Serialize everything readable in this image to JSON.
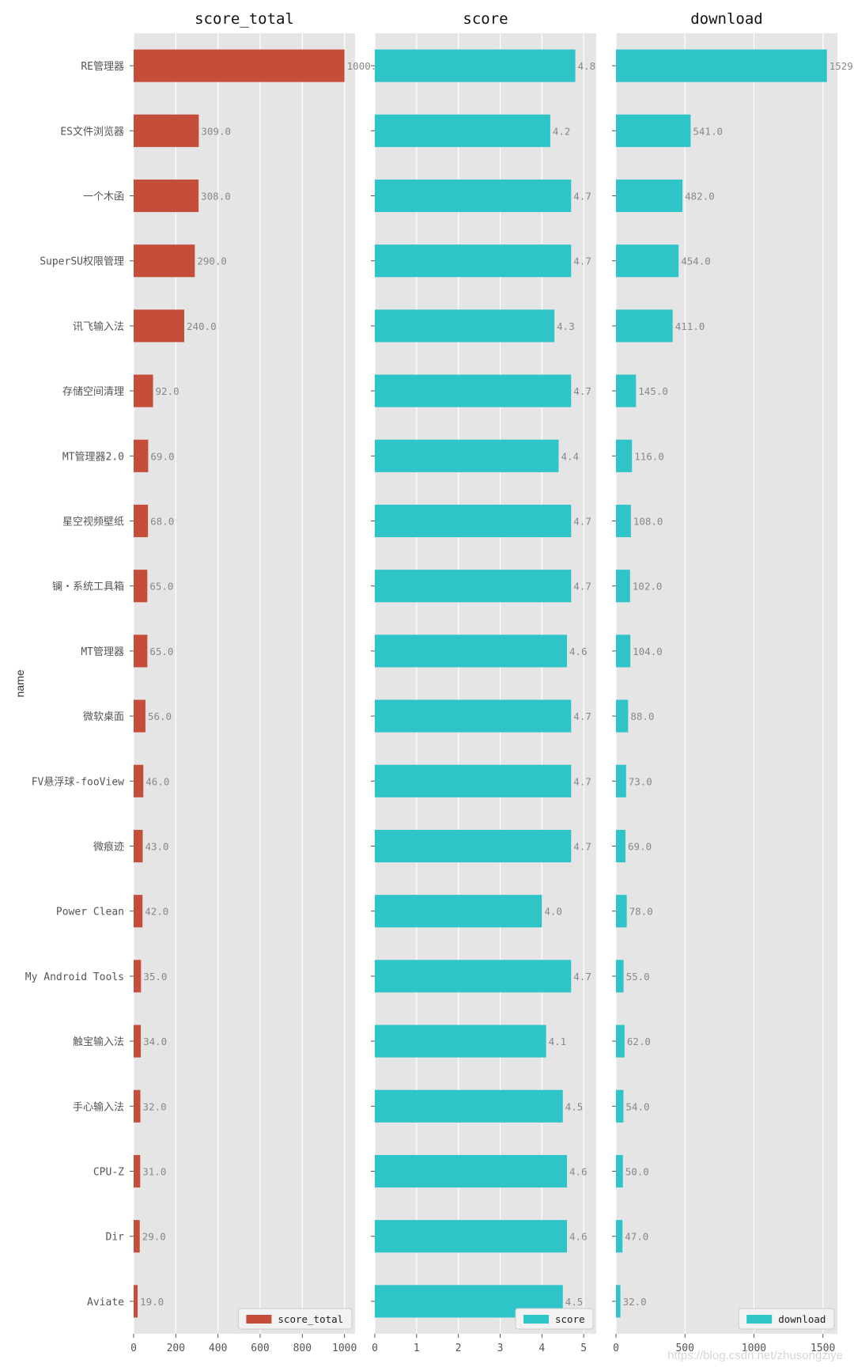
{
  "chart_data": {
    "type": "bar",
    "orientation": "horizontal",
    "ylabel": "name",
    "categories": [
      "RE管理器",
      "ES文件浏览器",
      "一个木函",
      "SuperSU权限管理",
      "讯飞输入法",
      "存储空间清理",
      "MT管理器2.0",
      "星空视频壁纸",
      "镧・系统工具箱",
      "MT管理器",
      "微软桌面",
      "FV悬浮球-fooView",
      "微痕迹",
      "Power Clean",
      "My Android Tools",
      "触宝输入法",
      "手心输入法",
      "CPU-Z",
      "Dir",
      "Aviate"
    ],
    "series": [
      {
        "name": "score_total",
        "title": "score_total",
        "color": "#c44e3a",
        "values": [
          1000,
          309,
          308,
          290,
          240,
          92,
          69,
          68,
          65,
          65,
          56,
          46,
          43,
          42,
          35,
          34,
          32,
          31,
          29,
          19
        ],
        "value_labels": [
          "1000.0",
          "309.0",
          "308.0",
          "290.0",
          "240.0",
          "92.0",
          "69.0",
          "68.0",
          "65.0",
          "65.0",
          "56.0",
          "46.0",
          "43.0",
          "42.0",
          "35.0",
          "34.0",
          "32.0",
          "31.0",
          "29.0",
          "19.0"
        ],
        "xlim": [
          0,
          1050
        ],
        "xticks": [
          0,
          200,
          400,
          600,
          800,
          1000
        ],
        "xtick_labels": [
          "0",
          "200",
          "400",
          "600",
          "800",
          "1000"
        ],
        "legend": "score_total"
      },
      {
        "name": "score",
        "title": "score",
        "color": "#2ec4c8",
        "values": [
          4.8,
          4.2,
          4.7,
          4.7,
          4.3,
          4.7,
          4.4,
          4.7,
          4.7,
          4.6,
          4.7,
          4.7,
          4.7,
          4.0,
          4.7,
          4.1,
          4.5,
          4.6,
          4.6,
          4.5
        ],
        "value_labels": [
          "4.8",
          "4.2",
          "4.7",
          "4.7",
          "4.3",
          "4.7",
          "4.4",
          "4.7",
          "4.7",
          "4.6",
          "4.7",
          "4.7",
          "4.7",
          "4.0",
          "4.7",
          "4.1",
          "4.5",
          "4.6",
          "4.6",
          "4.5"
        ],
        "xlim": [
          0,
          5.3
        ],
        "xticks": [
          0,
          1,
          2,
          3,
          4,
          5
        ],
        "xtick_labels": [
          "0",
          "1",
          "2",
          "3",
          "4",
          "5"
        ],
        "legend": "score"
      },
      {
        "name": "download",
        "title": "download",
        "color": "#2ec4c8",
        "values": [
          1529,
          541,
          482,
          454,
          411,
          145,
          116,
          108,
          102,
          104,
          88,
          73,
          69,
          78,
          55,
          62,
          54,
          50,
          47,
          32
        ],
        "value_labels": [
          "1529.0",
          "541.0",
          "482.0",
          "454.0",
          "411.0",
          "145.0",
          "116.0",
          "108.0",
          "102.0",
          "104.0",
          "88.0",
          "73.0",
          "69.0",
          "78.0",
          "55.0",
          "62.0",
          "54.0",
          "50.0",
          "47.0",
          "32.0"
        ],
        "xlim": [
          0,
          1605
        ],
        "xticks": [
          0,
          500,
          1000,
          1500
        ],
        "xtick_labels": [
          "0",
          "500",
          "1000",
          "1500"
        ],
        "legend": "download"
      }
    ]
  },
  "watermark": "https://blog.csdn.net/zhusongziye"
}
